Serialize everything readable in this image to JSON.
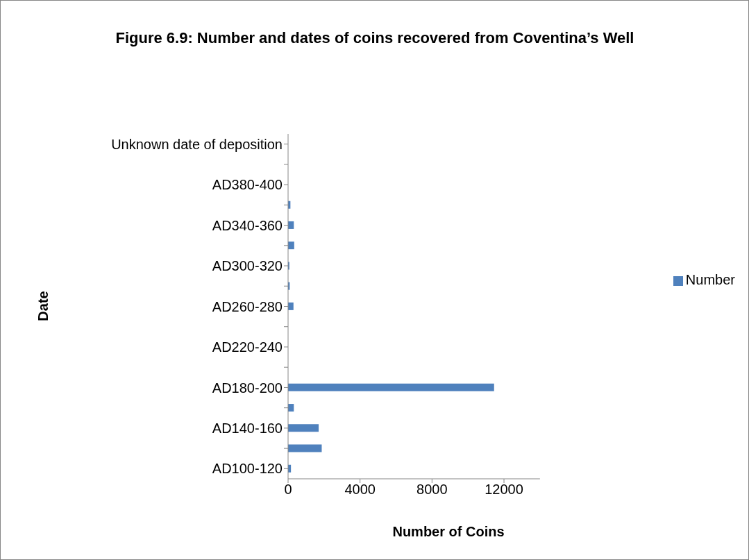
{
  "chart_data": {
    "type": "bar",
    "orientation": "horizontal",
    "title": "Figure 6.9: Number and dates of coins recovered from Coventina’s Well",
    "xlabel": "Number of Coins",
    "ylabel": "Date",
    "categories": [
      "Unknown date of deposition",
      null,
      "AD380-400",
      null,
      "AD340-360",
      null,
      "AD300-320",
      null,
      "AD260-280",
      null,
      "AD220-240",
      null,
      "AD180-200",
      null,
      "AD140-160",
      null,
      "AD100-120"
    ],
    "series": [
      {
        "name": "Number",
        "color": "#4f81bd",
        "values": [
          0,
          0,
          0,
          130,
          320,
          340,
          70,
          90,
          300,
          0,
          0,
          0,
          11450,
          320,
          1700,
          1870,
          160
        ]
      }
    ],
    "xlim": [
      0,
      14000
    ],
    "xticks": [
      0,
      4000,
      8000,
      12000
    ],
    "legend": "right"
  }
}
